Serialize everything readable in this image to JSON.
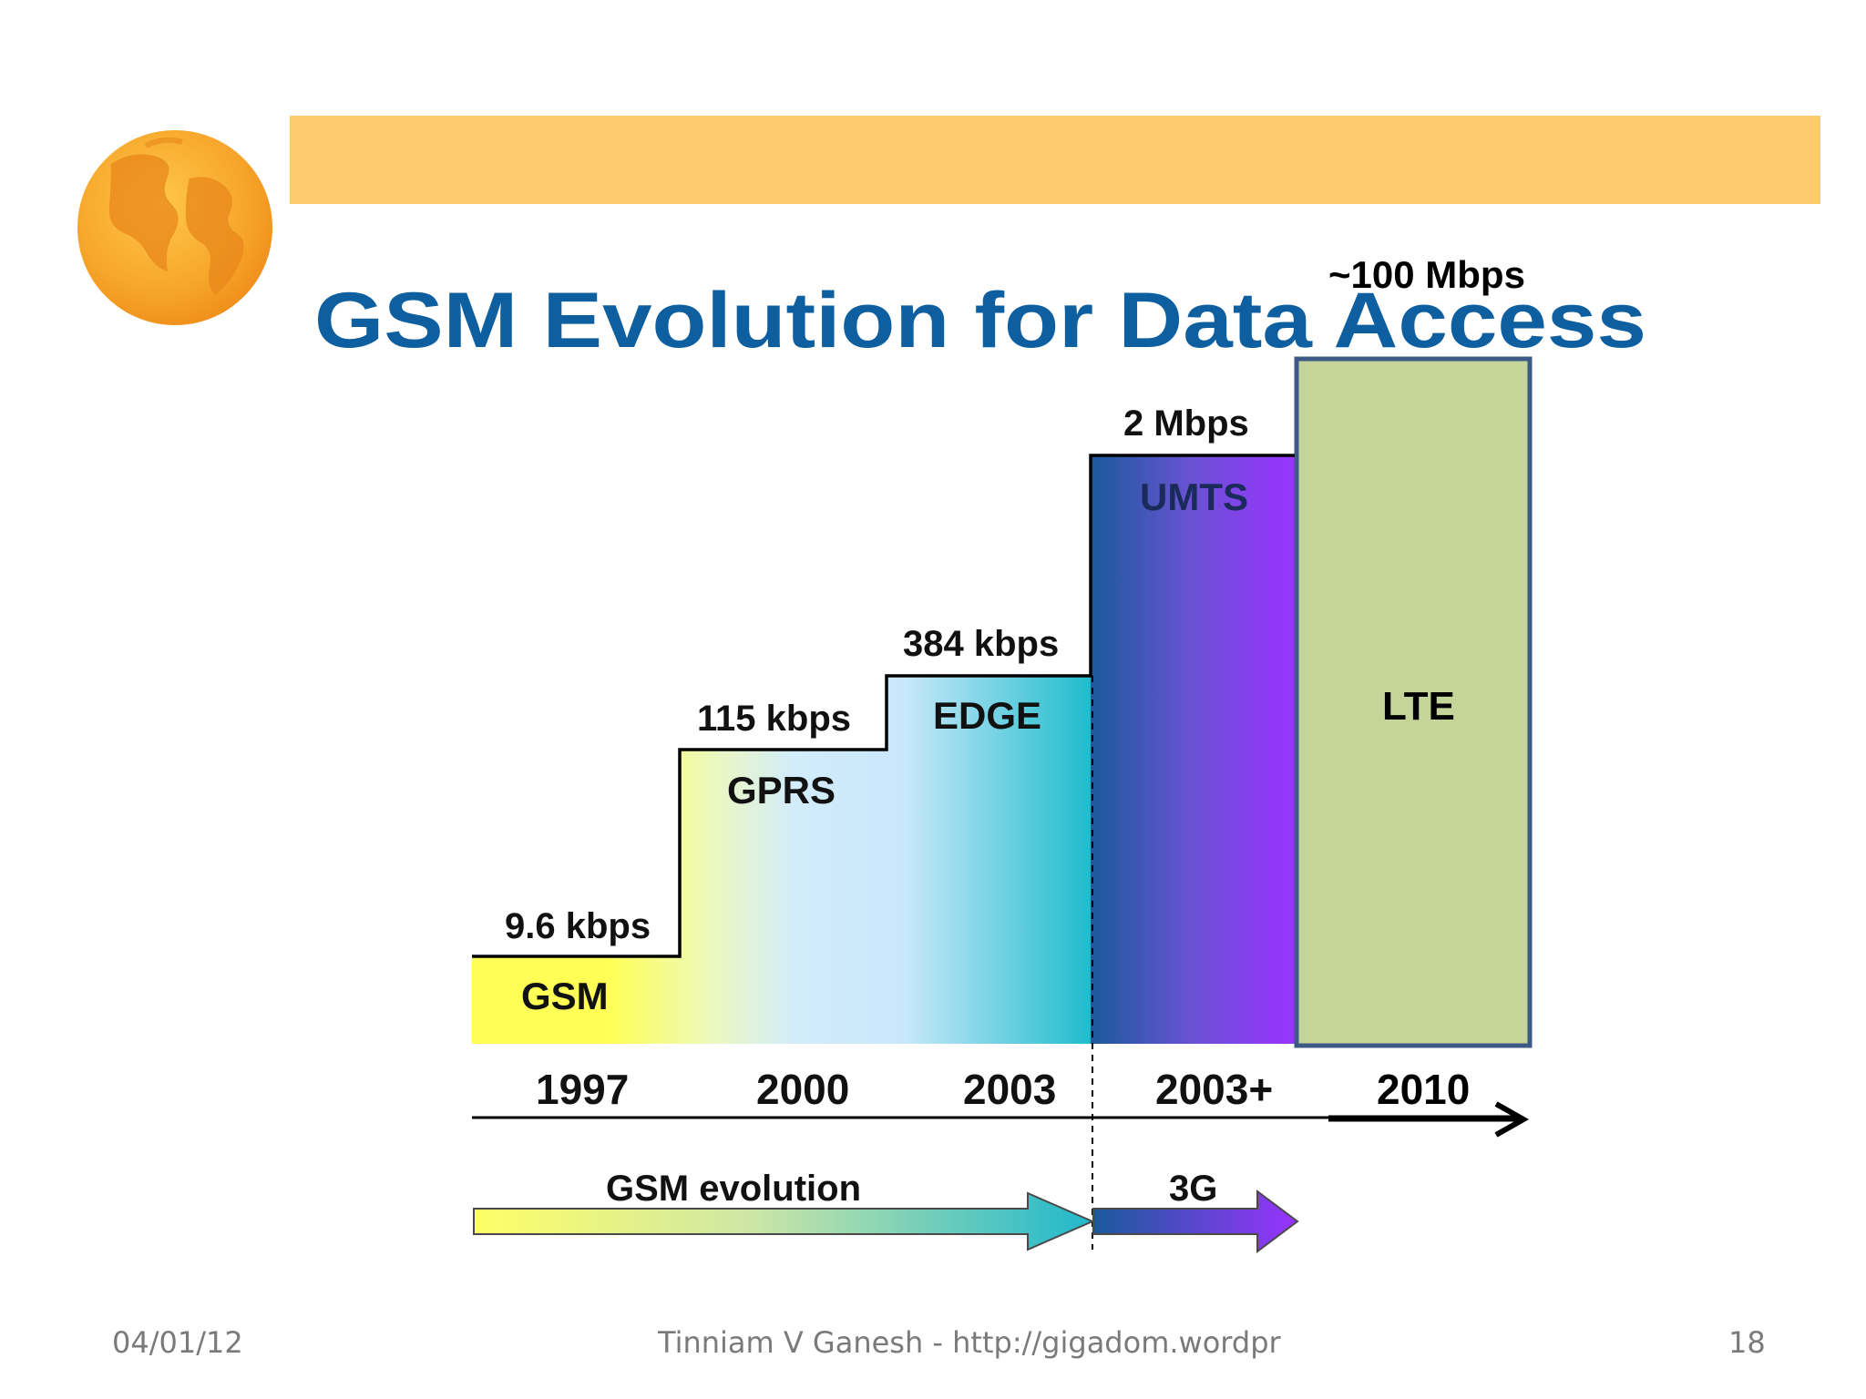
{
  "slide": {
    "title": "GSM Evolution for Data Access",
    "lte_rate": "~100 Mbps",
    "steps": [
      {
        "name": "GSM",
        "rate": "9.6 kbps",
        "year": "1997"
      },
      {
        "name": "GPRS",
        "rate": "115 kbps",
        "year": "2000"
      },
      {
        "name": "EDGE",
        "rate": "384 kbps",
        "year": "2003"
      },
      {
        "name": "UMTS",
        "rate": "2 Mbps",
        "year": "2003+"
      },
      {
        "name": "LTE",
        "rate": "~100 Mbps",
        "year": "2010"
      }
    ],
    "arrows": {
      "gsm_evolution": "GSM evolution",
      "three_g": "3G"
    },
    "colors": {
      "title": "#0d5fa0",
      "banner": "#fdcb6e",
      "lte_fill": "#c5d59a",
      "lte_border": "#3d5a86",
      "umts_violet": "#9933ff",
      "edge_cyan": "#1fbccc",
      "gsm_yellow": "#ffff55"
    }
  },
  "footer": {
    "date": "04/01/12",
    "author": "Tinniam V Ganesh - http://gigadom.wordpr",
    "page": "18"
  }
}
